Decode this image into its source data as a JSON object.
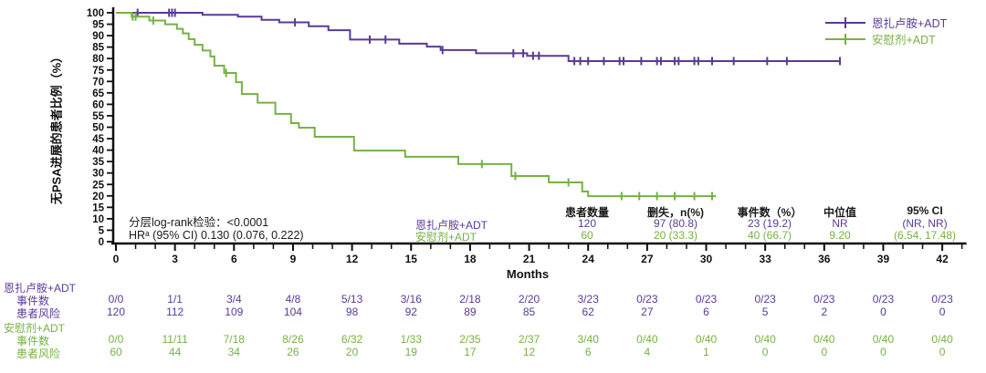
{
  "colors": {
    "enza": "#5b3a96",
    "plc": "#76b243",
    "axis": "#0f0f0f"
  },
  "legend": [
    {
      "label": "恩扎卢胺+ADT",
      "color_key": "enza"
    },
    {
      "label": "安慰剂+ADT",
      "color_key": "plc"
    }
  ],
  "stats": {
    "logrank": "分层log-rank检验：<0.0001",
    "hr": "HRᵃ (95% CI) 0.130 (0.076, 0.222)"
  },
  "summary_table": {
    "headers": [
      "患者数量",
      "删失，n(%)",
      "事件数（%）",
      "中位值",
      "95% CI"
    ],
    "rows": [
      {
        "group": "恩扎卢胺+ADT",
        "values": [
          "120",
          "97 (80.8)",
          "23 (19.2)",
          "NR",
          "(NR, NR)"
        ]
      },
      {
        "group": "安慰剂+ADT",
        "values": [
          "60",
          "20 (33.3)",
          "40 (66.7)",
          "9.20",
          "(6.54, 17.48)"
        ]
      }
    ]
  },
  "risk_table": {
    "row_labels": {
      "events": "事件数",
      "at_risk": "患者风险"
    },
    "timepoints": [
      0,
      3,
      6,
      9,
      12,
      15,
      18,
      21,
      24,
      27,
      30,
      33,
      36,
      39,
      42
    ],
    "groups": [
      {
        "label": "恩扎卢胺+ADT",
        "events": [
          "0/0",
          "1/1",
          "3/4",
          "4/8",
          "5/13",
          "3/16",
          "2/18",
          "2/20",
          "3/23",
          "0/23",
          "0/23",
          "0/23",
          "0/23",
          "0/23",
          "0/23"
        ],
        "at_risk": [
          "120",
          "112",
          "109",
          "104",
          "98",
          "92",
          "89",
          "85",
          "62",
          "27",
          "6",
          "5",
          "2",
          "0",
          "0"
        ]
      },
      {
        "label": "安慰剂+ADT",
        "events": [
          "0/0",
          "11/11",
          "7/18",
          "8/26",
          "6/32",
          "1/33",
          "2/35",
          "2/37",
          "3/40",
          "0/40",
          "0/40",
          "0/40",
          "0/40",
          "0/40",
          "0/40"
        ],
        "at_risk": [
          "60",
          "44",
          "34",
          "26",
          "20",
          "19",
          "17",
          "12",
          "6",
          "4",
          "1",
          "0",
          "0",
          "0",
          "0"
        ]
      }
    ]
  },
  "chart_data": {
    "type": "line",
    "subtype": "kaplan-meier-step",
    "title": "",
    "xlabel": "Months",
    "ylabel": "无PSA进展的患者比例（%）",
    "xlim": [
      0,
      43
    ],
    "ylim": [
      0,
      100
    ],
    "x_axis": {
      "major_step": 3,
      "minor_step": 1,
      "major_max": 42,
      "minor_max": 43
    },
    "y_axis": {
      "step": 5
    },
    "grid": false,
    "legend_position": "top-right",
    "series": [
      {
        "name": "恩扎卢胺+ADT",
        "color_key": "enza",
        "end_month": 36.8,
        "steps": [
          [
            0,
            100
          ],
          [
            4.4,
            99.1
          ],
          [
            6.2,
            98.3
          ],
          [
            7.4,
            96.9
          ],
          [
            8.3,
            95.8
          ],
          [
            9.8,
            94.1
          ],
          [
            10.8,
            92.4
          ],
          [
            11.9,
            88.3
          ],
          [
            14.4,
            86.5
          ],
          [
            15.8,
            85.2
          ],
          [
            16.5,
            83.7
          ],
          [
            18.3,
            82.3
          ],
          [
            20.9,
            81.2
          ],
          [
            23.0,
            78.9
          ]
        ],
        "censor_months": [
          1.1,
          2.7,
          2.85,
          3.0,
          9.1,
          12.9,
          13.7,
          16.6,
          20.2,
          20.7,
          21.2,
          21.5,
          23.3,
          23.6,
          24.0,
          24.8,
          25.6,
          25.8,
          26.7,
          27.5,
          27.7,
          28.4,
          28.6,
          29.4,
          29.6,
          30.3,
          31.4,
          33.1,
          34.1,
          36.8
        ]
      },
      {
        "name": "安慰剂+ADT",
        "color_key": "plc",
        "end_month": 30.5,
        "steps": [
          [
            0,
            100
          ],
          [
            0.8,
            98.3
          ],
          [
            1.7,
            96.6
          ],
          [
            2.5,
            95.0
          ],
          [
            3.1,
            93.0
          ],
          [
            3.4,
            91.0
          ],
          [
            3.7,
            88.5
          ],
          [
            4.0,
            86.0
          ],
          [
            4.4,
            83.5
          ],
          [
            4.8,
            80.9
          ],
          [
            5.0,
            76.9
          ],
          [
            5.5,
            73.7
          ],
          [
            6.1,
            69.7
          ],
          [
            6.4,
            64.5
          ],
          [
            7.2,
            60.7
          ],
          [
            8.1,
            55.8
          ],
          [
            8.9,
            51.8
          ],
          [
            9.3,
            49.8
          ],
          [
            10.1,
            45.8
          ],
          [
            12.1,
            39.8
          ],
          [
            14.7,
            37.1
          ],
          [
            17.4,
            33.9
          ],
          [
            20.1,
            28.7
          ],
          [
            22.0,
            25.9
          ],
          [
            23.7,
            21.9
          ],
          [
            24.0,
            19.9
          ]
        ],
        "censor_months": [
          0.85,
          1.0,
          1.9,
          5.6,
          18.6,
          20.3,
          23.0,
          25.7,
          26.6,
          27.5,
          28.4,
          29.4,
          30.3
        ]
      }
    ]
  }
}
